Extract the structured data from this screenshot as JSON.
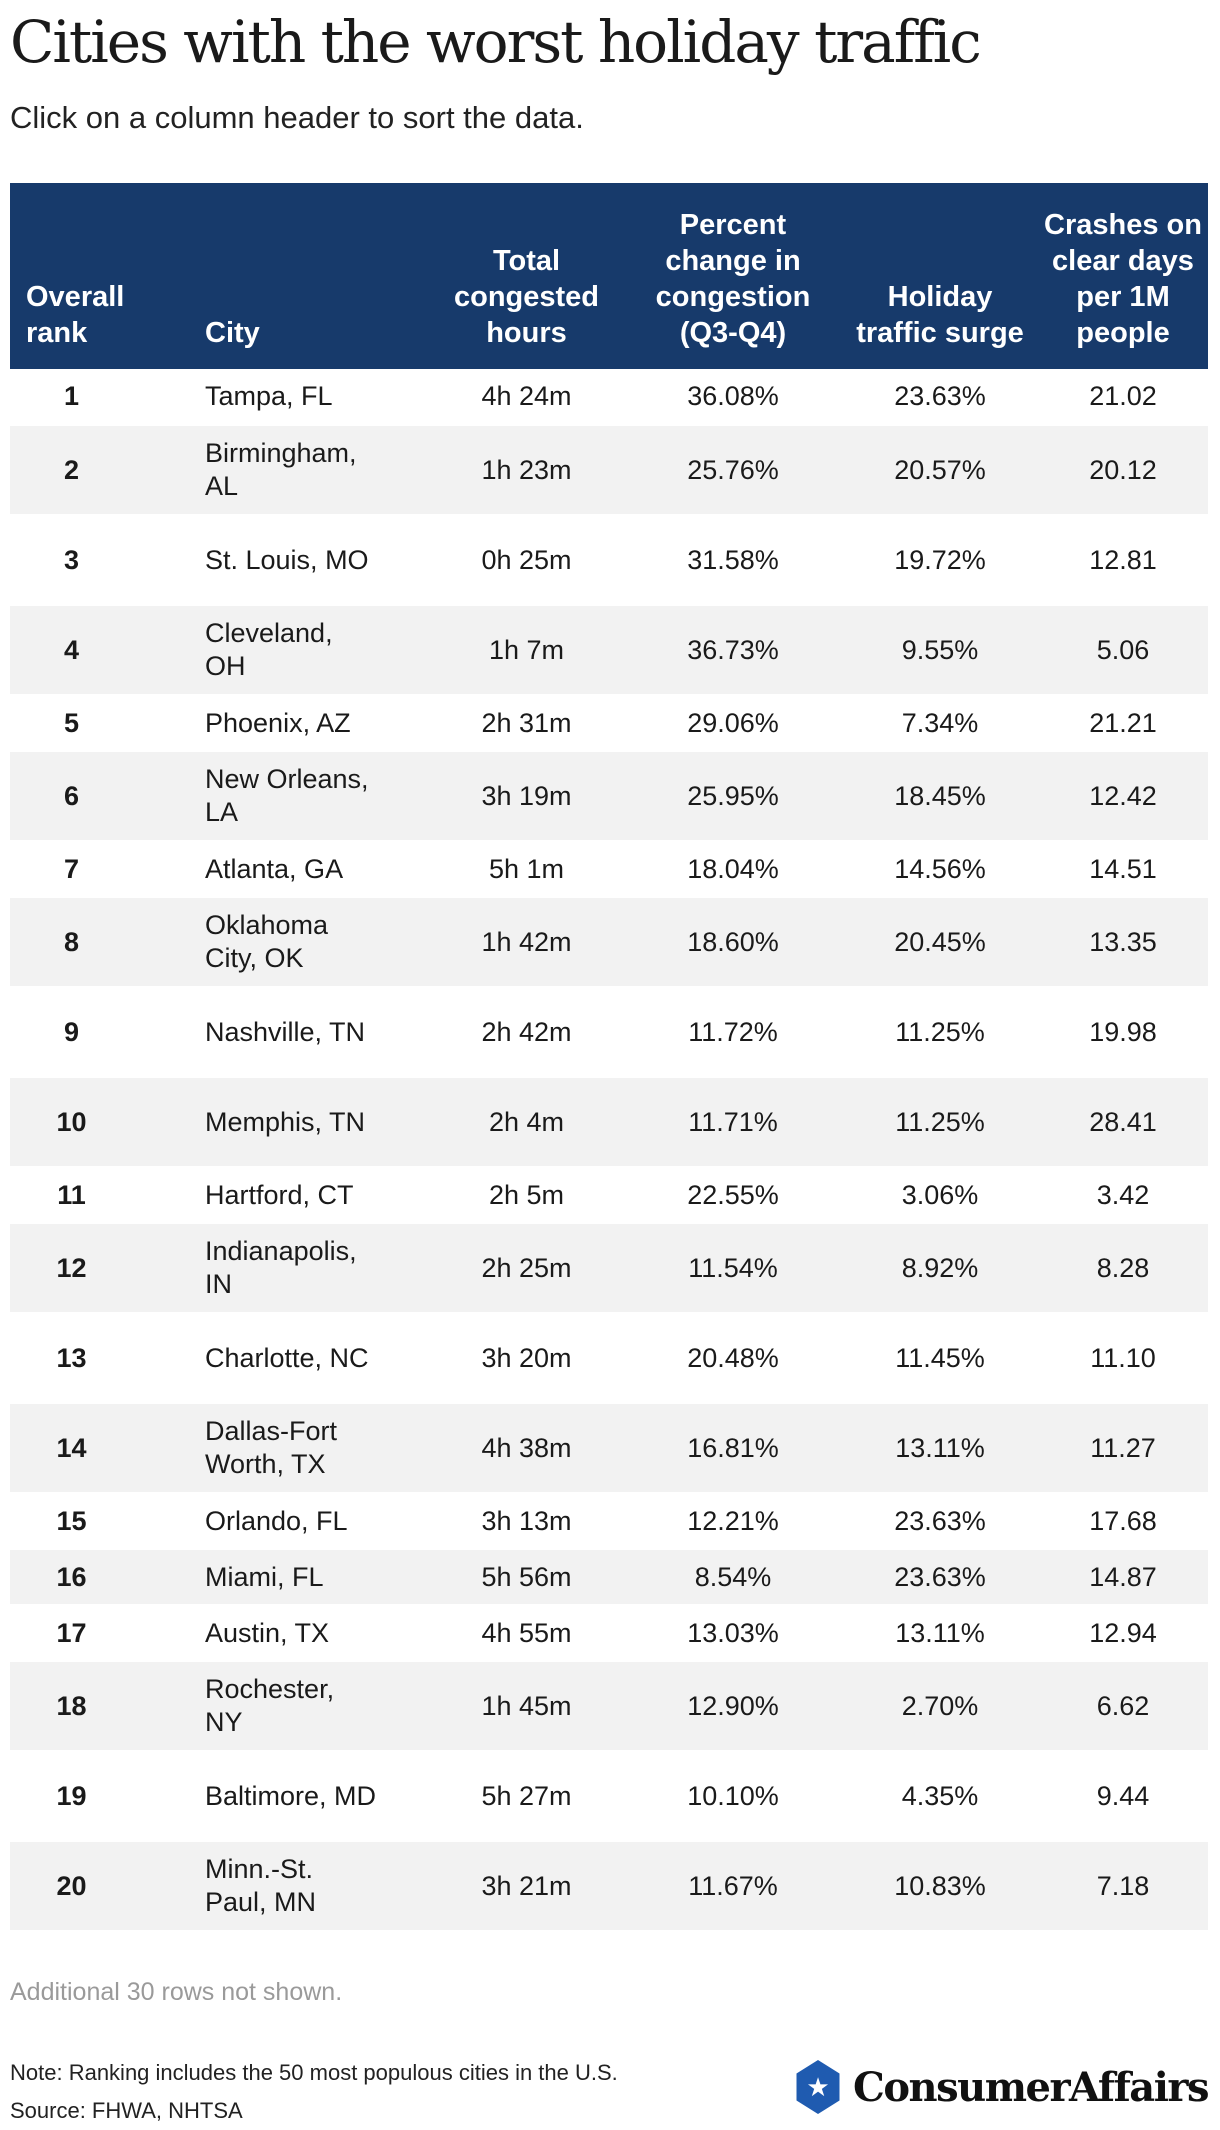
{
  "title": "Cities with the worst holiday traffic",
  "subtitle": "Click on a column header to sort the data.",
  "columns": [
    "Overall rank",
    "City",
    "Total congested hours",
    "Percent change in congestion (Q3-Q4)",
    "Holiday traffic surge",
    "Crashes on clear days per 1M people"
  ],
  "rows": [
    {
      "rank": "1",
      "city": "Tampa, FL",
      "hours": "4h 24m",
      "pct": "36.08%",
      "surge": "23.63%",
      "crashes": "21.02"
    },
    {
      "rank": "2",
      "city": "Birmingham, AL",
      "hours": "1h 23m",
      "pct": "25.76%",
      "surge": "20.57%",
      "crashes": "20.12"
    },
    {
      "rank": "3",
      "city": "St. Louis, MO",
      "hours": "0h 25m",
      "pct": "31.58%",
      "surge": "19.72%",
      "crashes": "12.81"
    },
    {
      "rank": "4",
      "city": "Cleveland, OH",
      "hours": "1h 7m",
      "pct": "36.73%",
      "surge": "9.55%",
      "crashes": "5.06"
    },
    {
      "rank": "5",
      "city": "Phoenix, AZ",
      "hours": "2h 31m",
      "pct": "29.06%",
      "surge": "7.34%",
      "crashes": "21.21"
    },
    {
      "rank": "6",
      "city": "New Orleans, LA",
      "hours": "3h 19m",
      "pct": "25.95%",
      "surge": "18.45%",
      "crashes": "12.42"
    },
    {
      "rank": "7",
      "city": "Atlanta, GA",
      "hours": "5h 1m",
      "pct": "18.04%",
      "surge": "14.56%",
      "crashes": "14.51"
    },
    {
      "rank": "8",
      "city": "Oklahoma City, OK",
      "hours": "1h 42m",
      "pct": "18.60%",
      "surge": "20.45%",
      "crashes": "13.35"
    },
    {
      "rank": "9",
      "city": "Nashville, TN",
      "hours": "2h 42m",
      "pct": "11.72%",
      "surge": "11.25%",
      "crashes": "19.98"
    },
    {
      "rank": "10",
      "city": "Memphis, TN",
      "hours": "2h 4m",
      "pct": "11.71%",
      "surge": "11.25%",
      "crashes": "28.41"
    },
    {
      "rank": "11",
      "city": "Hartford, CT",
      "hours": "2h 5m",
      "pct": "22.55%",
      "surge": "3.06%",
      "crashes": "3.42"
    },
    {
      "rank": "12",
      "city": "Indianapolis, IN",
      "hours": "2h 25m",
      "pct": "11.54%",
      "surge": "8.92%",
      "crashes": "8.28"
    },
    {
      "rank": "13",
      "city": "Charlotte, NC",
      "hours": "3h 20m",
      "pct": "20.48%",
      "surge": "11.45%",
      "crashes": "11.10"
    },
    {
      "rank": "14",
      "city": "Dallas-Fort Worth, TX",
      "hours": "4h 38m",
      "pct": "16.81%",
      "surge": "13.11%",
      "crashes": "11.27"
    },
    {
      "rank": "15",
      "city": "Orlando, FL",
      "hours": "3h 13m",
      "pct": "12.21%",
      "surge": "23.63%",
      "crashes": "17.68"
    },
    {
      "rank": "16",
      "city": "Miami, FL",
      "hours": "5h 56m",
      "pct": "8.54%",
      "surge": "23.63%",
      "crashes": "14.87"
    },
    {
      "rank": "17",
      "city": "Austin, TX",
      "hours": "4h 55m",
      "pct": "13.03%",
      "surge": "13.11%",
      "crashes": "12.94"
    },
    {
      "rank": "18",
      "city": "Rochester, NY",
      "hours": "1h 45m",
      "pct": "12.90%",
      "surge": "2.70%",
      "crashes": "6.62"
    },
    {
      "rank": "19",
      "city": "Baltimore, MD",
      "hours": "5h 27m",
      "pct": "10.10%",
      "surge": "4.35%",
      "crashes": "9.44"
    },
    {
      "rank": "20",
      "city": "Minn.-St. Paul, MN",
      "hours": "3h 21m",
      "pct": "11.67%",
      "surge": "10.83%",
      "crashes": "7.18"
    }
  ],
  "more_rows_text": "Additional 30 rows not shown.",
  "note": "Note: Ranking includes the 50 most populous cities in the U.S.",
  "source": "Source: FHWA, NHTSA",
  "brand": {
    "name": "ConsumerAffairs",
    "icon": "star-shield-icon"
  }
}
